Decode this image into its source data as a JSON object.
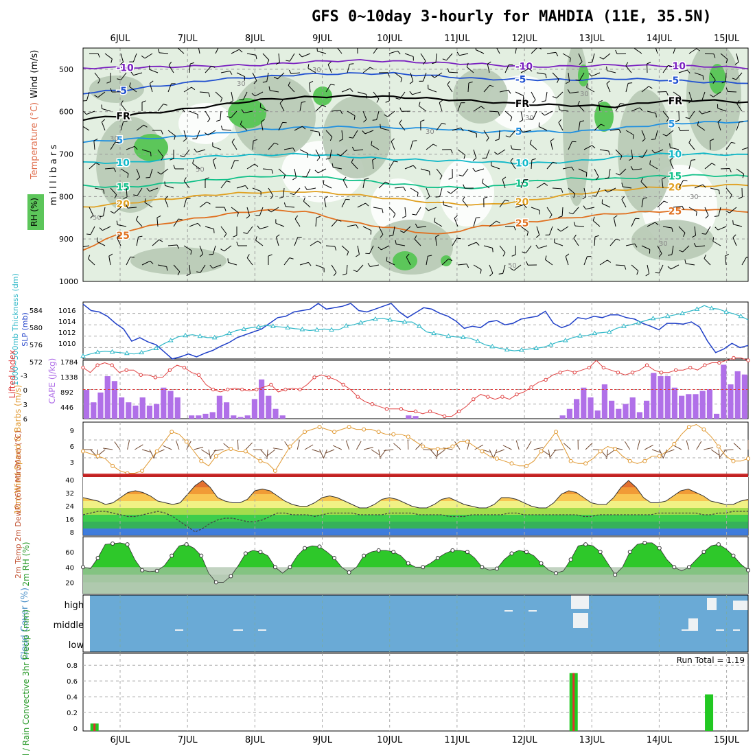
{
  "title": "GFS 0~10day 3-hourly for MAHDIA (11E, 35.5N)",
  "date_ticks": [
    "6JUL",
    "7JUL",
    "8JUL",
    "9JUL",
    "10JUL",
    "11JUL",
    "12JUL",
    "13JUL",
    "14JUL",
    "15JUL"
  ],
  "colors": {
    "rh_light": "#e3efe1",
    "rh_mid": "#b7c9b5",
    "rh_dark": "#7ba57a",
    "rh_green": "#5cc65a",
    "slp": "#2040c8",
    "thickness": "#30b8c8",
    "lifted": "#e04040",
    "cape": "#b070e8",
    "wind_speed": "#e09830",
    "barb": "#704830",
    "rh_fill": "#2ec82a",
    "cloud": "#6aaad6",
    "precip_total": "#22c822",
    "precip_conv": "#e03030"
  },
  "chart_data": [
    {
      "type": "contour",
      "name": "upper-air cross-section",
      "ylabel": "m i l l i b a r s",
      "y_ticks": [
        500,
        600,
        700,
        800,
        900,
        1000
      ],
      "ylim": [
        450,
        1000
      ],
      "side_labels": {
        "rh": "RH (%)",
        "temperature": "Temperature (°C)",
        "wind": "Wind (m/s)"
      },
      "rh_labels": [
        "30",
        "30",
        "30",
        "30",
        "50",
        "50",
        "30",
        "30",
        "30",
        "50",
        "30"
      ],
      "freezing_label": "FR",
      "temperature_contours": [
        {
          "value": -10,
          "label": "-10",
          "color": "#7a20c0",
          "levels": [
            497,
            496,
            494,
            492,
            490,
            483,
            479,
            481,
            485,
            488,
            494,
            493,
            490,
            492,
            493,
            497
          ]
        },
        {
          "value": -5,
          "label": "-5",
          "color": "#2050d0",
          "levels": [
            556,
            548,
            536,
            524,
            518,
            512,
            510,
            510,
            516,
            523,
            524,
            525,
            522,
            525,
            530,
            532
          ]
        },
        {
          "value": 0,
          "label": "FR",
          "color": "#000000",
          "levels": [
            618,
            608,
            598,
            585,
            572,
            566,
            563,
            565,
            570,
            576,
            583,
            585,
            588,
            575,
            573,
            578
          ]
        },
        {
          "value": 5,
          "label": "5",
          "color": "#2090e0",
          "levels": [
            672,
            665,
            660,
            652,
            642,
            637,
            636,
            638,
            640,
            648,
            646,
            648,
            640,
            630,
            625,
            624
          ]
        },
        {
          "value": 10,
          "label": "10",
          "color": "#10b8c8",
          "levels": [
            720,
            720,
            712,
            705,
            702,
            700,
            706,
            712,
            715,
            718,
            722,
            718,
            708,
            700,
            700,
            702
          ]
        },
        {
          "value": 15,
          "label": "15",
          "color": "#10c088",
          "levels": [
            775,
            778,
            768,
            760,
            752,
            752,
            760,
            770,
            778,
            780,
            765,
            758,
            758,
            752,
            750,
            752
          ]
        },
        {
          "value": 20,
          "label": "20",
          "color": "#e0a020",
          "levels": [
            825,
            815,
            805,
            795,
            790,
            788,
            795,
            805,
            815,
            820,
            810,
            795,
            785,
            778,
            775,
            772
          ]
        },
        {
          "value": 25,
          "label": "25",
          "color": "#e07020",
          "levels": [
            925,
            880,
            860,
            845,
            832,
            835,
            860,
            875,
            890,
            870,
            860,
            850,
            840,
            835,
            830,
            835
          ]
        }
      ]
    },
    {
      "type": "line",
      "name": "SLP and 1000-500mb thickness",
      "ylabel_left": "1000~500mb Thickness (dm)",
      "ylabel_right": "SLP (mb)",
      "left_ticks": [
        "584",
        "580",
        "576",
        "572"
      ],
      "right_ticks": [
        "1016",
        "1014",
        "1012",
        "1010"
      ],
      "series": [
        {
          "name": "SLP (mb)",
          "ylim": [
            1009,
            1017
          ],
          "values": [
            1016.7,
            1015.8,
            1015.6,
            1015,
            1014,
            1013.2,
            1011.5,
            1012,
            1011.4,
            1011,
            1010,
            1009,
            1009.3,
            1009.7,
            1009.3,
            1009.8,
            1010.2,
            1010.8,
            1011.3,
            1012,
            1012.4,
            1012.8,
            1013.2,
            1014,
            1014.8,
            1015,
            1015.6,
            1015.8,
            1016,
            1016.8,
            1016,
            1016.2,
            1016.4,
            1016.8,
            1015.8,
            1015.6,
            1016,
            1016.4,
            1016.8,
            1015.6,
            1014.8,
            1015.5,
            1016.2,
            1016,
            1015.4,
            1015,
            1014.3,
            1013.3,
            1013.6,
            1013.4,
            1014.2,
            1014.4,
            1013.8,
            1014,
            1014.6,
            1014.8,
            1015,
            1015.7,
            1014,
            1013.4,
            1013.8,
            1014.8,
            1014.6,
            1015,
            1014.8,
            1015.2,
            1015.2,
            1014.8,
            1014.6,
            1014,
            1013.6,
            1013.1,
            1014,
            1014,
            1013.9,
            1014.2,
            1013.5,
            1011.5,
            1009.9,
            1010.4,
            1011.2,
            1010.6,
            1010.9
          ]
        },
        {
          "name": "Thickness (dm)",
          "ylim": [
            571,
            587
          ],
          "values": [
            571.8,
            572.4,
            572.9,
            573.2,
            573,
            572.8,
            572.6,
            572.4,
            572.8,
            573.4,
            574,
            575.2,
            576.2,
            577.2,
            577.6,
            577.8,
            577.4,
            577,
            577,
            577.4,
            578.2,
            579,
            579.4,
            579.8,
            580,
            580.4,
            580.2,
            580,
            579.8,
            579.5,
            579.3,
            579,
            579.2,
            579.4,
            579.2,
            579.2,
            580.3,
            580.6,
            581.2,
            581.8,
            582.2,
            582.4,
            582,
            581.6,
            581.4,
            581.4,
            580.2,
            578.6,
            578.2,
            577.8,
            577.4,
            577.2,
            577.1,
            576.8,
            576,
            575,
            574.5,
            574,
            573.6,
            573.3,
            573.5,
            573.8,
            574,
            574.3,
            575,
            575.8,
            576.2,
            577,
            577.5,
            577.6,
            578.2,
            578.4,
            578.6,
            579.6,
            580.2,
            580.6,
            581.2,
            581.8,
            582.4,
            582.5,
            583,
            583.4,
            583.8,
            584.4,
            585,
            586,
            585.2,
            585,
            584.2,
            583.7,
            583,
            582
          ]
        }
      ]
    },
    {
      "type": "bar+line",
      "name": "Lifted Index and CAPE",
      "ylabel_left": "Lifted Index",
      "ylabel_right": "CAPE (J/kg)",
      "left_ticks": [
        "-3",
        "0",
        "3",
        "6"
      ],
      "right_ticks": [
        "1784",
        "1338",
        "892",
        "446"
      ],
      "series": [
        {
          "name": "Lifted Index",
          "ylim": [
            -6,
            6
          ],
          "values": [
            -4.5,
            -3.5,
            -5,
            -5.5,
            -5,
            -3.5,
            -4,
            -4,
            -3,
            -3,
            -2.5,
            -2.5,
            -4,
            -5,
            -4.5,
            -3.5,
            -3,
            -1,
            0,
            0.5,
            0,
            -0.3,
            0,
            0.3,
            0,
            -0.5,
            -1,
            0.5,
            0,
            -0.3,
            0,
            -1,
            -2.5,
            -3,
            -2.5,
            -2,
            -1,
            0,
            1.5,
            2.5,
            3,
            3.5,
            4,
            4,
            4,
            4.5,
            4.5,
            5,
            4.5,
            5,
            5.5,
            5.5,
            4.5,
            3.5,
            2,
            1,
            1.5,
            2,
            1.5,
            2,
            1,
            0.5,
            -0.5,
            -1.5,
            -2,
            -3,
            -3.5,
            -4,
            -3.5,
            -4,
            -4.5,
            -6,
            -4.5,
            -4,
            -3.5,
            -3,
            -3.5,
            -4,
            -5,
            -4,
            -3.5,
            -3.5,
            -4,
            -4,
            -4.5,
            -4,
            -5,
            -5.5,
            -5.5,
            -6,
            -6.5,
            -6.5,
            -6
          ]
        },
        {
          "name": "CAPE (J/kg)",
          "ylim": [
            0,
            1784
          ],
          "values": [
            880,
            500,
            800,
            1300,
            1150,
            650,
            500,
            400,
            650,
            400,
            450,
            950,
            850,
            650,
            0,
            100,
            100,
            150,
            200,
            700,
            500,
            100,
            50,
            100,
            600,
            1200,
            700,
            300,
            100,
            0,
            0,
            0,
            0,
            0,
            0,
            0,
            0,
            0,
            0,
            0,
            0,
            0,
            0,
            0,
            0,
            0,
            100,
            80,
            0,
            0,
            0,
            0,
            0,
            0,
            0,
            0,
            0,
            0,
            0,
            0,
            0,
            0,
            0,
            0,
            0,
            0,
            0,
            0,
            100,
            300,
            600,
            950,
            650,
            250,
            1050,
            550,
            300,
            450,
            650,
            200,
            550,
            1400,
            1300,
            1300,
            950,
            700,
            750,
            750,
            850,
            900,
            150,
            1650,
            1050,
            1450,
            1350
          ]
        }
      ]
    },
    {
      "type": "line",
      "name": "10m wind speed and barbs",
      "ylabel": "10m Wind Speed & Barbs (m/s)",
      "yticks": [
        "9",
        "6",
        "3"
      ],
      "ylim": [
        0,
        11
      ],
      "values": [
        5,
        4.5,
        4,
        3.5,
        2,
        1,
        0.5,
        0.5,
        1,
        3,
        5,
        7,
        9,
        8.5,
        7,
        5,
        3,
        2,
        4,
        5,
        5.5,
        5,
        5,
        4,
        3,
        2.5,
        1,
        3.5,
        6,
        7.5,
        9,
        9.5,
        10,
        9.5,
        9,
        9.5,
        10,
        9.5,
        9.5,
        9.5,
        9,
        8.5,
        8.5,
        8.5,
        8,
        7,
        6,
        5.5,
        5.5,
        5.5,
        6,
        7,
        7,
        6,
        5,
        4,
        3.5,
        3,
        2.5,
        2,
        2,
        3,
        5,
        7,
        9,
        6,
        3,
        2.5,
        2.5,
        3.5,
        5,
        6,
        5.5,
        4,
        3,
        2.5,
        3,
        4,
        4,
        5,
        6.5,
        8.5,
        10,
        10.5,
        9.5,
        8,
        6,
        4,
        3,
        3,
        3.5
      ]
    },
    {
      "type": "line",
      "name": "2m temperature and dew point",
      "ylabel": "2m Temp 2m DewPt (6hr Min/Max) (°C)",
      "yticks": [
        "40",
        "32",
        "24",
        "16",
        "8"
      ],
      "ylim": [
        8,
        42
      ],
      "series": [
        {
          "name": "2m Temp",
          "values": [
            30,
            29,
            28,
            26,
            27,
            30,
            33,
            34,
            33,
            31,
            28,
            27,
            26,
            27,
            32,
            37,
            40,
            36,
            30,
            28,
            27,
            27,
            29,
            34,
            35,
            34,
            31,
            28,
            26,
            25,
            25,
            27,
            30,
            31,
            30,
            28,
            26,
            24,
            24,
            26,
            29,
            30,
            29,
            27,
            25,
            24,
            24,
            26,
            29,
            30,
            28,
            26,
            25,
            24,
            24,
            26,
            30,
            30,
            29,
            27,
            25,
            24,
            24,
            27,
            32,
            34,
            33,
            30,
            27,
            26,
            26,
            30,
            36,
            40,
            36,
            30,
            27,
            27,
            28,
            31,
            34,
            35,
            33,
            31,
            28,
            27,
            26,
            26,
            28,
            29
          ]
        },
        {
          "name": "2m DewPt",
          "values": [
            20,
            21,
            22,
            22,
            21,
            20,
            19,
            19,
            20,
            21,
            22,
            21,
            19,
            16,
            13,
            10,
            12,
            15,
            17,
            18,
            18,
            17,
            16,
            16,
            17,
            19,
            21,
            21,
            20,
            20,
            20,
            19,
            20,
            21,
            21,
            21,
            21,
            20,
            20,
            20,
            20,
            21,
            21,
            21,
            21,
            20,
            20,
            20,
            20,
            19,
            19,
            19,
            20,
            20,
            20,
            20,
            20,
            21,
            21,
            20,
            20,
            20,
            20,
            20,
            20,
            20,
            20,
            19,
            19,
            20,
            20,
            20,
            20,
            20,
            20,
            20,
            20,
            21,
            21,
            21,
            21,
            21,
            21,
            20,
            20,
            21,
            21,
            22,
            22,
            22
          ]
        }
      ]
    },
    {
      "type": "area",
      "name": "2m relative humidity",
      "ylabel": "2m RH (%)",
      "yticks": [
        "60",
        "40",
        "20"
      ],
      "ylim": [
        5,
        80
      ],
      "values": [
        40,
        38,
        52,
        70,
        71,
        72,
        70,
        50,
        36,
        34,
        35,
        42,
        55,
        68,
        70,
        65,
        55,
        32,
        20,
        20,
        28,
        42,
        58,
        62,
        60,
        55,
        40,
        32,
        40,
        55,
        65,
        68,
        67,
        60,
        52,
        40,
        33,
        40,
        55,
        60,
        62,
        62,
        60,
        55,
        45,
        40,
        40,
        45,
        52,
        58,
        62,
        62,
        60,
        52,
        40,
        36,
        38,
        50,
        58,
        62,
        60,
        55,
        45,
        36,
        32,
        35,
        50,
        68,
        70,
        68,
        60,
        45,
        30,
        40,
        60,
        70,
        72,
        72,
        65,
        50,
        40,
        35,
        40,
        50,
        60,
        68,
        70,
        64,
        55,
        44,
        36
      ]
    },
    {
      "type": "heatmap",
      "name": "cloud cover",
      "ylabel": "Cloud Cover (%)",
      "levels": [
        "high",
        "middle",
        "low"
      ],
      "note": "mostly 100% blue cover with a few clear patches"
    },
    {
      "type": "bar",
      "name": "3hr precipitation",
      "ylabel": "Total / Rain Convective 3hr Precip (mm)",
      "yticks": [
        "0.8",
        "0.6",
        "0.4",
        "0.2",
        "0"
      ],
      "ylim": [
        0,
        0.95
      ],
      "run_total": "Run Total = 1.19",
      "bars": [
        {
          "date": "5.62",
          "total": 0.06,
          "convective": 0.06
        },
        {
          "date": "12.73",
          "total": 0.7,
          "convective": 0.7
        },
        {
          "date": "14.74",
          "total": 0.43,
          "convective": 0.0
        }
      ]
    }
  ]
}
